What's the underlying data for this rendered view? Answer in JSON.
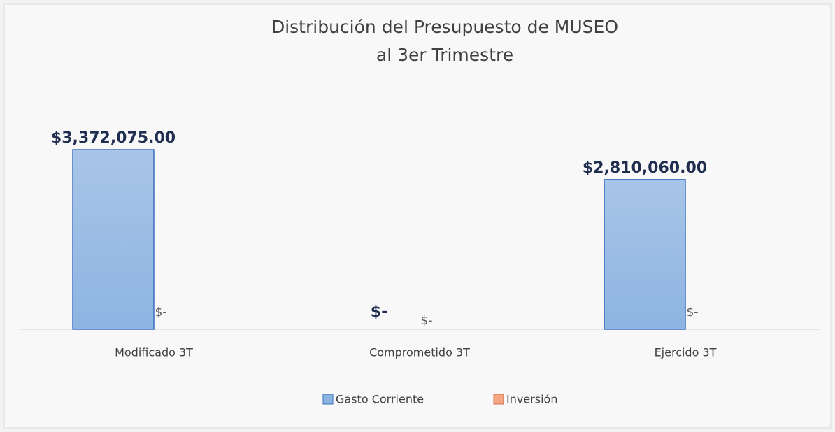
{
  "chart_data": {
    "type": "bar",
    "title": [
      "Distribución  del Presupuesto de MUSEO",
      "al 3er Trimestre"
    ],
    "categories": [
      "Modificado 3T",
      "Comprometido 3T",
      "Ejercido 3T"
    ],
    "series": [
      {
        "name": "Gasto Corriente",
        "color": "#8db4e2",
        "values": [
          3372075,
          0,
          2810060
        ],
        "value_labels": [
          "$3,372,075.00",
          "$-",
          "$2,810,060.00"
        ]
      },
      {
        "name": "Inversión",
        "color": "#f4a582",
        "values": [
          0,
          0,
          0
        ],
        "value_labels": [
          "$-",
          "$-",
          "$-"
        ]
      }
    ],
    "legend": "bottom"
  }
}
